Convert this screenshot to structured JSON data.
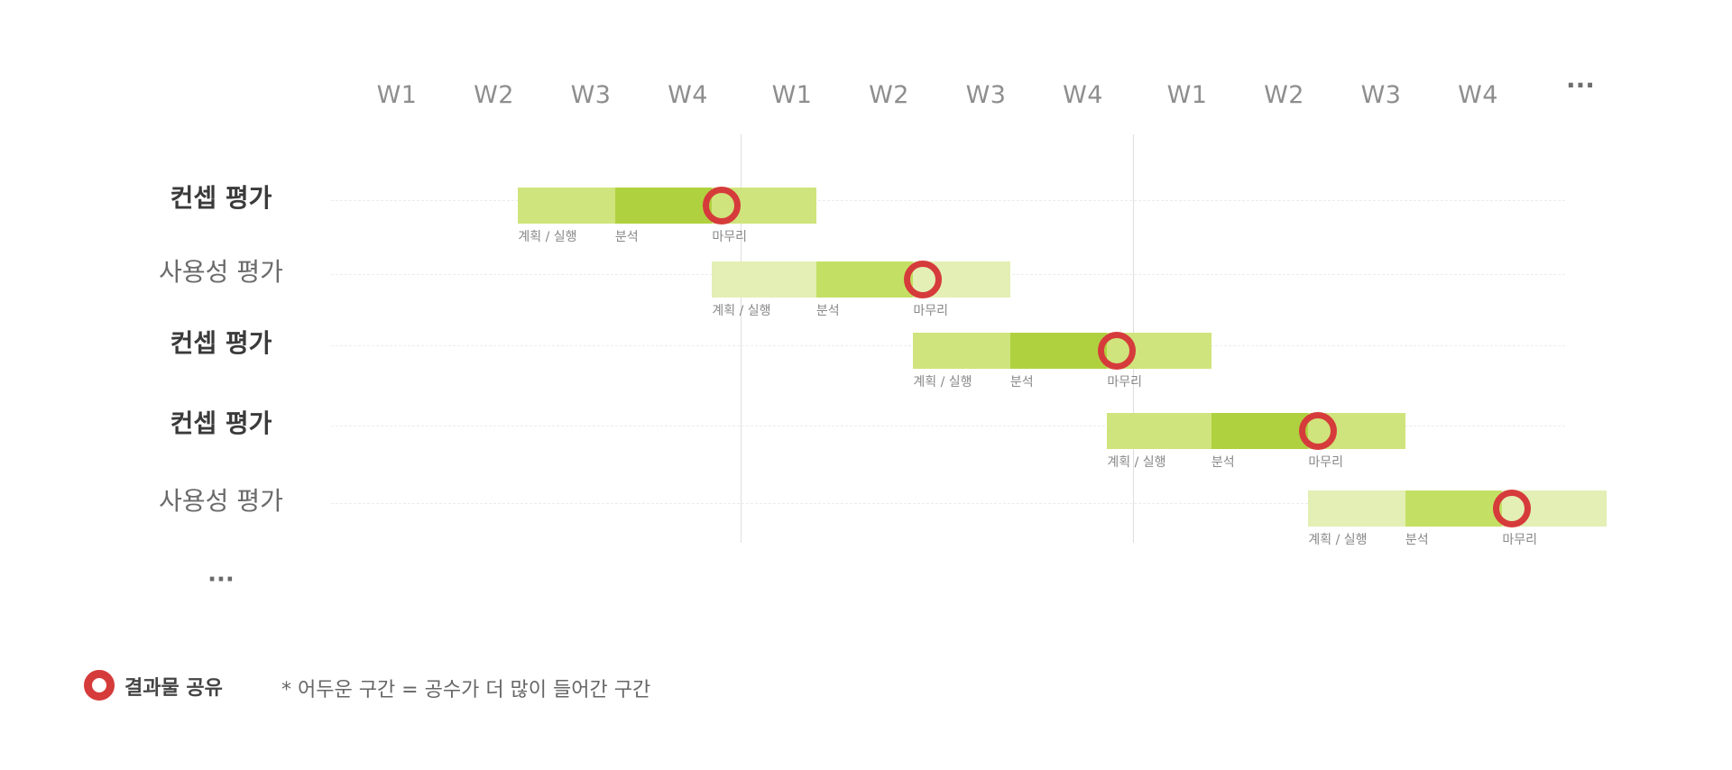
{
  "header": {
    "weeks": [
      "W1",
      "W2",
      "W3",
      "W4",
      "W1",
      "W2",
      "W3",
      "W4",
      "W1",
      "W2",
      "W3",
      "W4"
    ],
    "more": "···"
  },
  "rows": [
    {
      "label": "컨셉 평가",
      "style": "bold",
      "phases": [
        "계획 / 실행",
        "분석",
        "마무리"
      ],
      "start_week": 1.75,
      "durations": [
        1,
        1,
        1
      ],
      "marker_week": 3.85,
      "shade": "mid"
    },
    {
      "label": "사용성 평가",
      "style": "normal",
      "phases": [
        "계획 / 실행",
        "분석",
        "마무리"
      ],
      "start_week": 3.75,
      "durations": [
        1,
        1,
        1
      ],
      "marker_week": 5.85,
      "shade": "light"
    },
    {
      "label": "컨셉 평가",
      "style": "bold",
      "phases": [
        "계획 / 실행",
        "분석",
        "마무리"
      ],
      "start_week": 5.75,
      "durations": [
        1,
        1,
        1
      ],
      "marker_week": 7.85,
      "shade": "mid"
    },
    {
      "label": "컨셉 평가",
      "style": "bold",
      "phases": [
        "계획 / 실행",
        "분석",
        "마무리"
      ],
      "start_week": 7.75,
      "durations": [
        1,
        1,
        1
      ],
      "marker_week": 9.85,
      "shade": "mid"
    },
    {
      "label": "사용성 평가",
      "style": "normal",
      "phases": [
        "계획 / 실행",
        "분석",
        "마무리"
      ],
      "start_week": 9.75,
      "durations": [
        1,
        1,
        1
      ],
      "marker_week": 11.85,
      "shade": "light"
    }
  ],
  "rows_more": "···",
  "legend": {
    "marker_label": "결과물 공유",
    "note": "* 어두운 구간 = 공수가 더 많이 들어간 구간"
  },
  "colors": {
    "mid": [
      "#cfe47c",
      "#b0d13f",
      "#cfe47c"
    ],
    "light": [
      "#e3efb4",
      "#c4e064",
      "#e3efb4"
    ],
    "marker": "#d63b3b"
  }
}
